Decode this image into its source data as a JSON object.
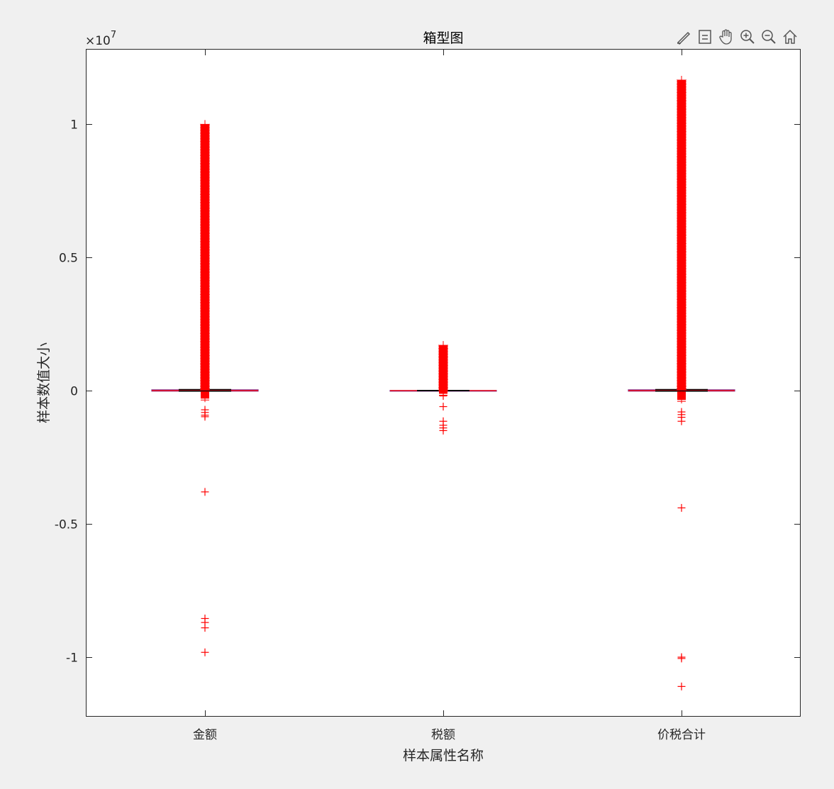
{
  "chart_data": {
    "type": "box",
    "title": "箱型图",
    "xlabel": "样本属性名称",
    "ylabel": "样本数值大小",
    "y_exponent_label": "×10",
    "y_exponent_power": "7",
    "y_exponent": 7,
    "ylim": [
      -1.22,
      1.25
    ],
    "yticks": [
      1,
      0.5,
      0,
      -0.5,
      -1
    ],
    "ytick_labels": [
      "1",
      "0.5",
      "0",
      "-0.5",
      "-1"
    ],
    "categories": [
      "金额",
      "税额",
      "价税合计"
    ],
    "box_color": "#7e2f8e",
    "median_color": "#ff0000",
    "outlier_color": "#ff0000",
    "groups": [
      {
        "name": "金额",
        "q1": -0.002,
        "median": 0.0,
        "q3": 0.003,
        "whisker_low": -0.002,
        "whisker_high": 0.004,
        "outlier_dense_high": [
          0.003,
          0.999
        ],
        "outlier_dense_low": [
          -0.03,
          -0.003
        ],
        "outliers_sparse": [
          -0.072,
          -0.082,
          -0.092,
          -0.098,
          -0.38,
          -0.855,
          -0.87,
          -0.89,
          -0.982
        ]
      },
      {
        "name": "税额",
        "q1": -0.0005,
        "median": 0.0,
        "q3": 0.0005,
        "whisker_low": -0.0005,
        "whisker_high": 0.0005,
        "outlier_dense_high": [
          0.0005,
          0.17
        ],
        "outlier_dense_low": [
          -0.012,
          -0.0005
        ],
        "outliers_sparse": [
          -0.02,
          -0.06,
          -0.115,
          -0.13,
          -0.14,
          -0.15
        ]
      },
      {
        "name": "价税合计",
        "q1": -0.002,
        "median": 0.0,
        "q3": 0.003,
        "whisker_low": -0.002,
        "whisker_high": 0.004,
        "outlier_dense_high": [
          0.003,
          1.165
        ],
        "outlier_dense_low": [
          -0.035,
          -0.003
        ],
        "outliers_sparse": [
          -0.08,
          -0.09,
          -0.1,
          -0.115,
          -0.44,
          -1.0,
          -1.005,
          -1.11
        ]
      }
    ]
  },
  "toolbar": {
    "icons": [
      "brush-icon",
      "legend-icon",
      "pan-hand-icon",
      "zoom-in-icon",
      "zoom-out-icon",
      "home-icon"
    ]
  }
}
